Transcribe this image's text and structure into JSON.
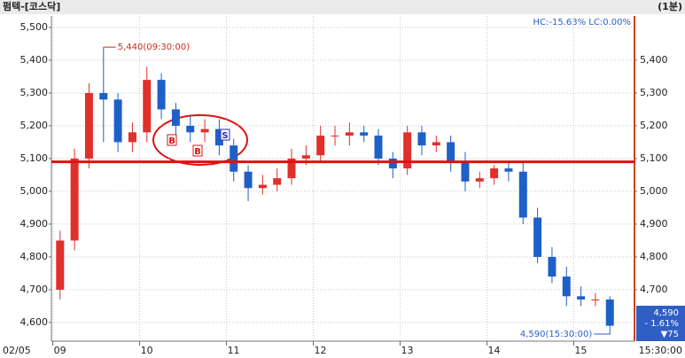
{
  "chart_data": {
    "type": "candlestick",
    "title": "펌텍-[코스닥]",
    "interval": "(1분)",
    "stats": "HC:-15.63%  LC:0.00%",
    "x_start_label": "02/05",
    "x_end_label": "15:30:00",
    "x": [
      0,
      10,
      20,
      30,
      40,
      50,
      60,
      70,
      80,
      90,
      100,
      110,
      120,
      130,
      140,
      150,
      160,
      170,
      180,
      190,
      200,
      210,
      220,
      230,
      240,
      250,
      260,
      270,
      280,
      290,
      300,
      310,
      320,
      330,
      340,
      350,
      360,
      370,
      380
    ],
    "open": [
      4700,
      4850,
      5100,
      5300,
      5280,
      5150,
      5180,
      5340,
      5250,
      5200,
      5180,
      5190,
      5140,
      5060,
      5010,
      5020,
      5040,
      5100,
      5110,
      5170,
      5170,
      5180,
      5170,
      5100,
      5070,
      5180,
      5140,
      5150,
      5090,
      5030,
      5040,
      5070,
      5060,
      4920,
      4800,
      4740,
      4680,
      4670,
      4670
    ],
    "high": [
      4880,
      5130,
      5330,
      5440,
      5300,
      5210,
      5380,
      5360,
      5270,
      5230,
      5220,
      5220,
      5160,
      5080,
      5050,
      5070,
      5130,
      5140,
      5200,
      5200,
      5210,
      5200,
      5190,
      5120,
      5200,
      5200,
      5170,
      5170,
      5120,
      5060,
      5080,
      5090,
      5090,
      4950,
      4830,
      4770,
      4710,
      4690,
      4680
    ],
    "low": [
      4670,
      4820,
      5070,
      5150,
      5120,
      5120,
      5150,
      5220,
      5170,
      5150,
      5150,
      5110,
      5030,
      4970,
      4990,
      5000,
      5020,
      5080,
      5090,
      5140,
      5140,
      5150,
      5080,
      5040,
      5050,
      5110,
      5120,
      5060,
      5000,
      5010,
      5020,
      5030,
      4900,
      4780,
      4720,
      4650,
      4650,
      4650,
      4590
    ],
    "close": [
      4850,
      5100,
      5300,
      5280,
      5150,
      5180,
      5340,
      5250,
      5200,
      5180,
      5190,
      5140,
      5060,
      5010,
      5020,
      5040,
      5100,
      5110,
      5170,
      5170,
      5180,
      5170,
      5100,
      5070,
      5180,
      5140,
      5150,
      5090,
      5030,
      5040,
      5070,
      5060,
      4920,
      4800,
      4740,
      4680,
      4670,
      4670,
      4590
    ],
    "up_color": "#e0302a",
    "down_color": "#1f5fc8",
    "xlim": [
      -1,
      402
    ],
    "xticks": [
      {
        "value": 0,
        "label": "09"
      },
      {
        "value": 60,
        "label": "10"
      },
      {
        "value": 120,
        "label": "11"
      },
      {
        "value": 180,
        "label": "12"
      },
      {
        "value": 240,
        "label": "13"
      },
      {
        "value": 300,
        "label": "14"
      },
      {
        "value": 360,
        "label": "15"
      }
    ],
    "ylim": [
      4543,
      5535
    ],
    "yticks": [
      {
        "value": 4600,
        "label": "4,600"
      },
      {
        "value": 4700,
        "label": "4,700"
      },
      {
        "value": 4800,
        "label": "4,800"
      },
      {
        "value": 4900,
        "label": "4,900"
      },
      {
        "value": 5000,
        "label": "5,000"
      },
      {
        "value": 5100,
        "label": "5,100"
      },
      {
        "value": 5200,
        "label": "5,200"
      },
      {
        "value": 5300,
        "label": "5,300"
      },
      {
        "value": 5400,
        "label": "5,400"
      },
      {
        "value": 5500,
        "label": "5,500"
      }
    ],
    "y2ticks": [
      {
        "value": 4700,
        "label": "4,700"
      },
      {
        "value": 4800,
        "label": "4,800"
      },
      {
        "value": 4900,
        "label": "4,900"
      },
      {
        "value": 5000,
        "label": "5,000"
      },
      {
        "value": 5100,
        "label": "5,100"
      },
      {
        "value": 5200,
        "label": "5,200"
      },
      {
        "value": 5300,
        "label": "5,300"
      },
      {
        "value": 5400,
        "label": "5,400"
      }
    ],
    "hline": 5090,
    "high_annotation": "5,440(09:30:00)",
    "low_annotation": "4,590(15:30:00)",
    "signals": [
      "B",
      "B",
      "S"
    ],
    "price_box": {
      "price": "4,590",
      "change_pct": "- 1.61%",
      "change": "▼75"
    },
    "grid": true
  }
}
